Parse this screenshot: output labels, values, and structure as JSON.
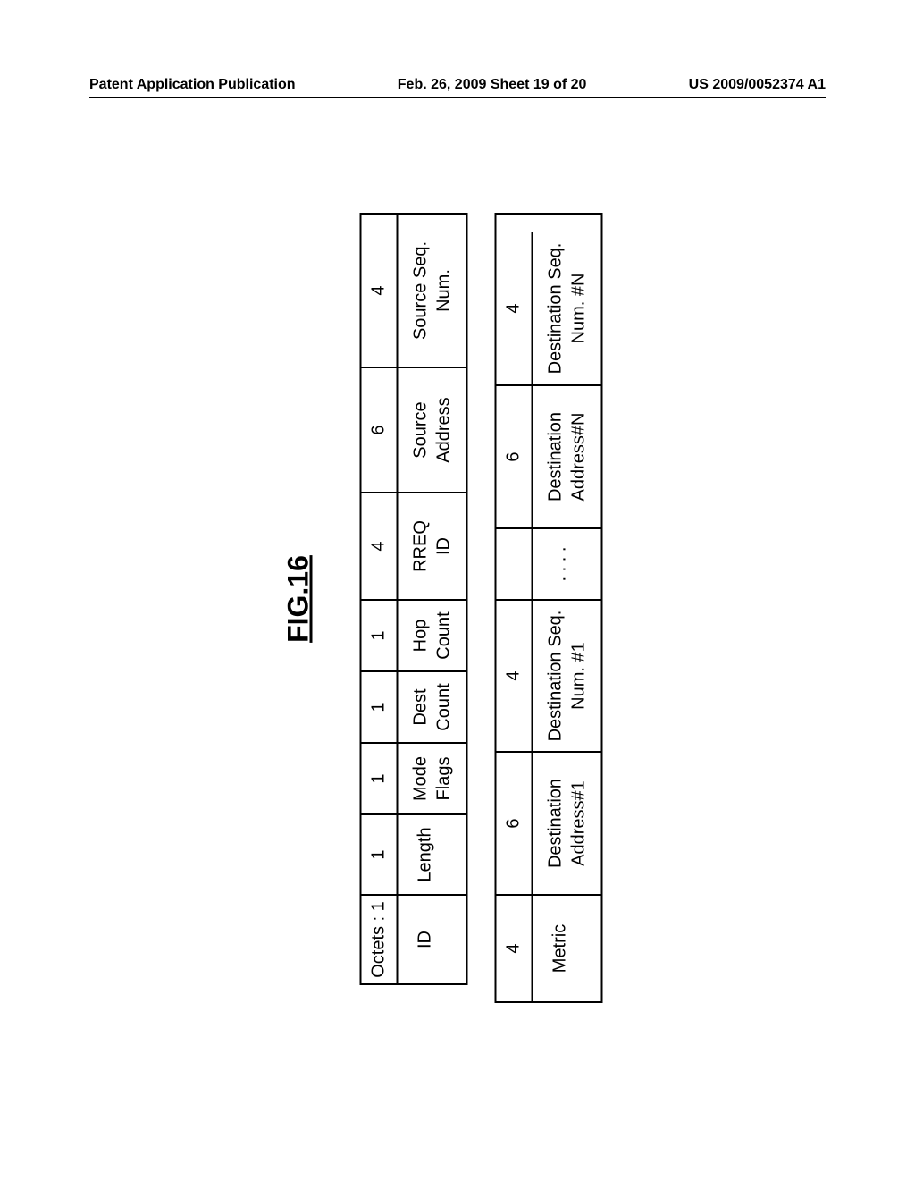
{
  "header": {
    "left": "Patent Application Publication",
    "center": "Feb. 26, 2009  Sheet 19 of 20",
    "right": "US 2009/0052374 A1"
  },
  "figure": {
    "title": "FIG.16"
  },
  "table1": {
    "octets_label": "Octets :",
    "cells": [
      {
        "header": "1",
        "body": "ID",
        "width_class": "w-1-narrow"
      },
      {
        "header": "1",
        "body": "Length",
        "width_class": "w-1"
      },
      {
        "header": "1",
        "body": "Mode\nFlags",
        "width_class": "w-1-narrow"
      },
      {
        "header": "1",
        "body": "Dest\nCount",
        "width_class": "w-1-narrow"
      },
      {
        "header": "1",
        "body": "Hop\nCount",
        "width_class": "w-1-narrow"
      },
      {
        "header": "4",
        "body": "RREQ\nID",
        "width_class": "w-4"
      },
      {
        "header": "6",
        "body": "Source\nAddress",
        "width_class": "w-6"
      },
      {
        "header": "4",
        "body": "Source Seq.\nNum.",
        "width_class": "w-4-wide"
      }
    ]
  },
  "table2": {
    "cells": [
      {
        "header": "4",
        "body": "Metric",
        "width_class": "w-4"
      },
      {
        "header": "6",
        "body": "Destination\nAddress#1",
        "width_class": "w-6-wide"
      },
      {
        "header": "4",
        "body": "Destination Seq.\nNum. #1",
        "width_class": "w-4-wide"
      },
      {
        "header": "",
        "body": ". . . .",
        "width_class": "w-ellipsis"
      },
      {
        "header": "6",
        "body": "Destination\nAddress#N",
        "width_class": "w-6-wide"
      },
      {
        "header": "4",
        "body": "Destination Seq.\nNum. #N",
        "width_class": "w-4-wide"
      }
    ]
  },
  "styling": {
    "page_background": "#ffffff",
    "border_color": "#000000",
    "text_color": "#000000",
    "header_fontsize": 16,
    "figure_title_fontsize": 32,
    "cell_fontsize": 20,
    "border_width": 2,
    "rotation_deg": -90
  }
}
